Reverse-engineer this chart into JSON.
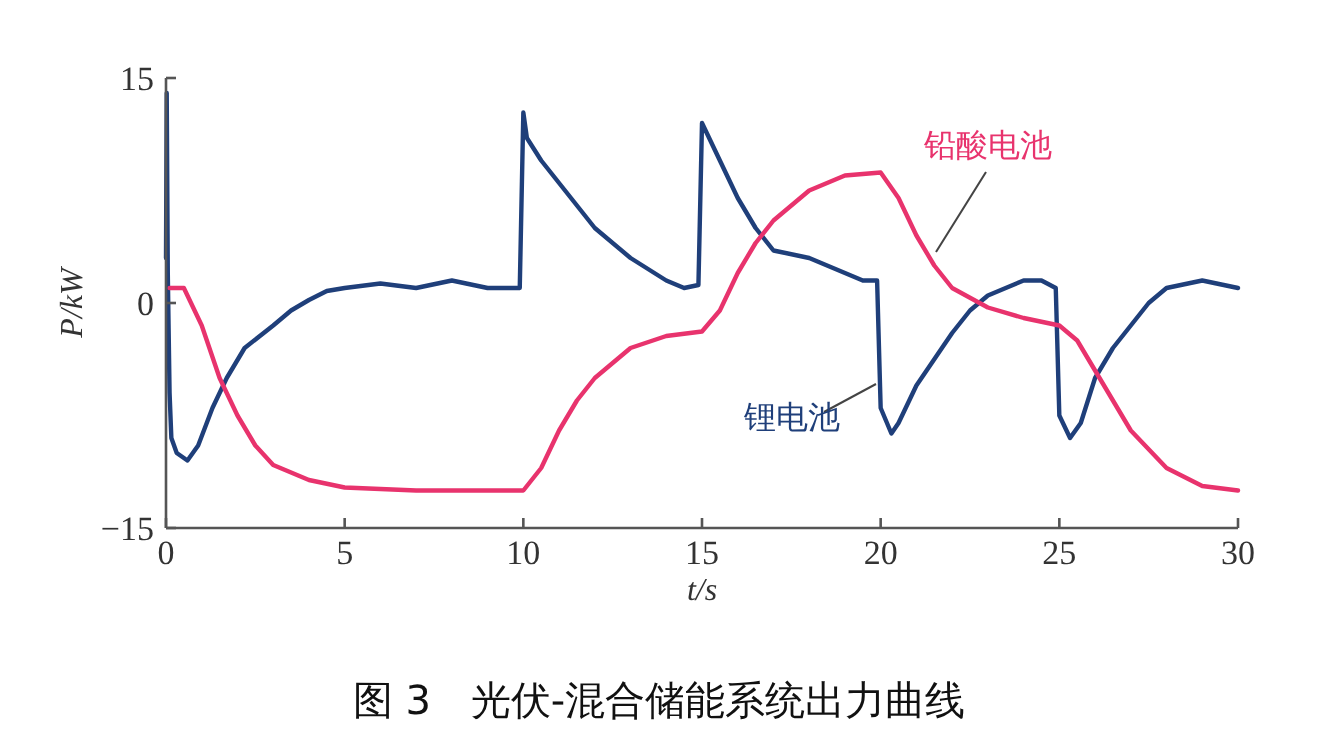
{
  "chart_data": {
    "type": "line",
    "title": "图 3　光伏-混合储能系统出力曲线",
    "xlabel": "t/s",
    "ylabel": "P/kW",
    "xlim": [
      0,
      30
    ],
    "xticks": [
      0,
      5,
      10,
      15,
      20,
      25,
      30
    ],
    "ylim": [
      -15,
      15
    ],
    "yticks": [
      -15,
      0,
      15
    ],
    "grid": false,
    "legend": false,
    "series": [
      {
        "name": "锂电池",
        "color": "#1f3f7a",
        "x": [
          0,
          0.02,
          0.05,
          0.1,
          0.15,
          0.3,
          0.6,
          0.9,
          1.3,
          1.7,
          2.2,
          3,
          3.5,
          4,
          4.5,
          5,
          6,
          7,
          8,
          9,
          9.9,
          10,
          10.1,
          10.5,
          11,
          12,
          13,
          14,
          14.5,
          14.9,
          15,
          15.3,
          16,
          16.5,
          17,
          18,
          19,
          19.5,
          19.9,
          20,
          20.3,
          20.5,
          21,
          22,
          22.5,
          23,
          23.5,
          24,
          24.5,
          24.9,
          25,
          25.3,
          25.6,
          26,
          26.5,
          27,
          27.5,
          28,
          29,
          30
        ],
        "values": [
          3,
          14,
          2,
          -6,
          -9,
          -10,
          -10.5,
          -9.5,
          -7,
          -5,
          -3,
          -1.5,
          -0.5,
          0.2,
          0.8,
          1,
          1.3,
          1,
          1.5,
          1,
          1,
          12.7,
          11,
          9.5,
          8,
          5,
          3,
          1.5,
          1,
          1.2,
          12,
          10.5,
          7,
          5,
          3.5,
          3,
          2,
          1.5,
          1.5,
          -7,
          -8.7,
          -8,
          -5.5,
          -2,
          -0.5,
          0.5,
          1,
          1.5,
          1.5,
          1,
          -7.5,
          -9,
          -8,
          -5,
          -3,
          -1.5,
          0,
          1,
          1.5,
          1
        ]
      },
      {
        "name": "铅酸电池",
        "color": "#e8336d",
        "x": [
          0.1,
          0.5,
          1,
          1.5,
          2,
          2.5,
          3,
          4,
          5,
          7,
          9,
          10,
          10.5,
          11,
          11.5,
          12,
          13,
          14,
          15,
          15.5,
          16,
          16.5,
          17,
          18,
          19,
          20,
          20.5,
          21,
          21.5,
          22,
          23,
          24,
          25,
          25.5,
          26,
          27,
          28,
          29,
          30
        ],
        "values": [
          1,
          1,
          -1.5,
          -5,
          -7.5,
          -9.5,
          -10.8,
          -11.8,
          -12.3,
          -12.5,
          -12.5,
          -12.5,
          -11,
          -8.5,
          -6.5,
          -5,
          -3,
          -2.2,
          -1.9,
          -0.5,
          2,
          4,
          5.5,
          7.5,
          8.5,
          8.7,
          7,
          4.5,
          2.5,
          1,
          -0.3,
          -1,
          -1.5,
          -2.5,
          -4.5,
          -8.5,
          -11,
          -12.2,
          -12.5
        ]
      }
    ]
  }
}
